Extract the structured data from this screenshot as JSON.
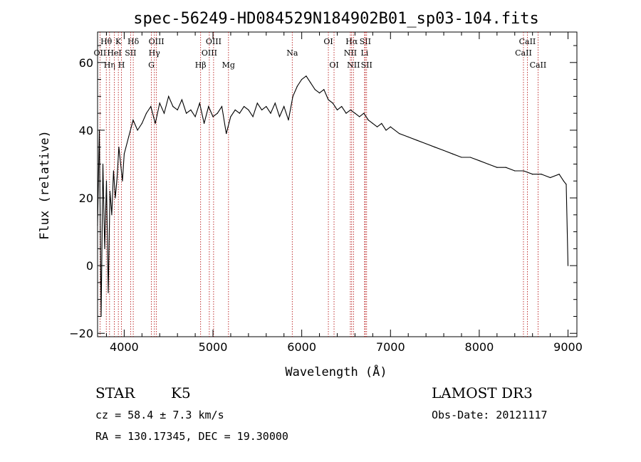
{
  "chart_data": {
    "type": "line",
    "title": "spec-56249-HD084529N184902B01_sp03-104.fits",
    "xlabel": "Wavelength (Å)",
    "ylabel": "Flux (relative)",
    "xlim": [
      3700,
      9100
    ],
    "ylim": [
      -21,
      69
    ],
    "xticks": [
      4000,
      5000,
      6000,
      7000,
      8000,
      9000
    ],
    "yticks": [
      -20,
      0,
      20,
      40,
      60
    ],
    "xtick_labels": [
      "4000",
      "5000",
      "6000",
      "7000",
      "8000",
      "9000"
    ],
    "ytick_labels": [
      "−20",
      "0",
      "20",
      "40",
      "60"
    ],
    "series": [
      {
        "name": "flux",
        "x": [
          3700,
          3720,
          3740,
          3760,
          3780,
          3800,
          3820,
          3840,
          3860,
          3880,
          3900,
          3920,
          3940,
          3960,
          3980,
          4000,
          4050,
          4100,
          4150,
          4200,
          4250,
          4300,
          4350,
          4400,
          4450,
          4500,
          4550,
          4600,
          4650,
          4700,
          4750,
          4800,
          4850,
          4900,
          4950,
          5000,
          5050,
          5100,
          5150,
          5200,
          5250,
          5300,
          5350,
          5400,
          5450,
          5500,
          5550,
          5600,
          5650,
          5700,
          5750,
          5800,
          5850,
          5900,
          5950,
          6000,
          6050,
          6100,
          6150,
          6200,
          6250,
          6300,
          6350,
          6400,
          6450,
          6500,
          6550,
          6600,
          6650,
          6700,
          6750,
          6800,
          6850,
          6900,
          6950,
          7000,
          7100,
          7200,
          7300,
          7400,
          7500,
          7600,
          7700,
          7800,
          7900,
          8000,
          8100,
          8200,
          8300,
          8400,
          8500,
          8600,
          8700,
          8800,
          8900,
          8950,
          8980,
          9000
        ],
        "y": [
          12,
          40,
          -15,
          30,
          5,
          25,
          -8,
          22,
          15,
          28,
          20,
          26,
          35,
          30,
          25,
          33,
          38,
          43,
          40,
          42,
          45,
          47,
          42,
          48,
          45,
          50,
          47,
          46,
          49,
          45,
          46,
          44,
          48,
          42,
          47,
          44,
          45,
          47,
          39,
          44,
          46,
          45,
          47,
          46,
          44,
          48,
          46,
          47,
          45,
          48,
          44,
          47,
          43,
          50,
          53,
          55,
          56,
          54,
          52,
          51,
          52,
          49,
          48,
          46,
          47,
          45,
          46,
          45,
          44,
          45,
          43,
          42,
          41,
          42,
          40,
          41,
          39,
          38,
          37,
          36,
          35,
          34,
          33,
          32,
          32,
          31,
          30,
          29,
          29,
          28,
          28,
          27,
          27,
          26,
          27,
          25,
          24,
          0
        ]
      }
    ],
    "lines": [
      {
        "name": "Hθ",
        "wl": 3798,
        "row": 1
      },
      {
        "name": "OII",
        "wl": 3727,
        "row": 2
      },
      {
        "name": "Hη",
        "wl": 3835,
        "row": 3
      },
      {
        "name": "K",
        "wl": 3934,
        "row": 1
      },
      {
        "name": "HeI",
        "wl": 3889,
        "row": 2
      },
      {
        "name": "H",
        "wl": 3969,
        "row": 3
      },
      {
        "name": "SII",
        "wl": 4072,
        "row": 2
      },
      {
        "name": "Hδ",
        "wl": 4102,
        "row": 1
      },
      {
        "name": "OIII",
        "wl": 4363,
        "row": 1
      },
      {
        "name": "Hγ",
        "wl": 4340,
        "row": 2
      },
      {
        "name": "G",
        "wl": 4306,
        "row": 3
      },
      {
        "name": "Hβ",
        "wl": 4861,
        "row": 3
      },
      {
        "name": "OIII",
        "wl": 5007,
        "row": 1
      },
      {
        "name": "OIII",
        "wl": 4959,
        "row": 2
      },
      {
        "name": "Mg",
        "wl": 5175,
        "row": 3
      },
      {
        "name": "Na",
        "wl": 5893,
        "row": 2
      },
      {
        "name": "OI",
        "wl": 6300,
        "row": 1
      },
      {
        "name": "OI",
        "wl": 6364,
        "row": 3
      },
      {
        "name": "Hα",
        "wl": 6563,
        "row": 1
      },
      {
        "name": "NII",
        "wl": 6548,
        "row": 2
      },
      {
        "name": "NII",
        "wl": 6583,
        "row": 3
      },
      {
        "name": "SII",
        "wl": 6716,
        "row": 1
      },
      {
        "name": "Li",
        "wl": 6708,
        "row": 2
      },
      {
        "name": "SII",
        "wl": 6731,
        "row": 3
      },
      {
        "name": "CaII",
        "wl": 8542,
        "row": 1
      },
      {
        "name": "CaII",
        "wl": 8498,
        "row": 2
      },
      {
        "name": "CaII",
        "wl": 8662,
        "row": 3
      }
    ]
  },
  "info": {
    "object_class": "STAR",
    "subclass": "K5",
    "survey": "LAMOST DR3",
    "redshift": "cz = 58.4 ± 7.3 km/s",
    "obs_date": "Obs-Date: 20121117",
    "coords": "RA = 130.17345, DEC =  19.30000"
  }
}
